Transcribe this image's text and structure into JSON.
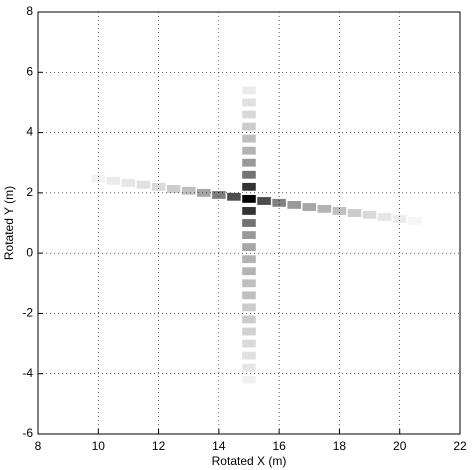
{
  "chart_data": {
    "type": "heatmap",
    "x_label": "Rotated X (m)",
    "y_label": "Rotated Y (m)",
    "xlim": [
      8,
      22
    ],
    "xticks": [
      8,
      10,
      12,
      14,
      16,
      18,
      20,
      22
    ],
    "ylim": [
      -6,
      8
    ],
    "yticks": [
      -6,
      -4,
      -2,
      0,
      2,
      4,
      6,
      8
    ],
    "grid": true,
    "colormap": "gray",
    "x": [
      15,
      15,
      15,
      15,
      15,
      15,
      15,
      15,
      15,
      15,
      15,
      15,
      15,
      15,
      15,
      15,
      15,
      15,
      15,
      15,
      15,
      15,
      15,
      15,
      15,
      10,
      10.5,
      11,
      11.5,
      12,
      12.5,
      13,
      13.5,
      14,
      14.5,
      15.5,
      16,
      16.5,
      17,
      17.5,
      18,
      18.5,
      19,
      19.5,
      20,
      20.5
    ],
    "y": [
      5.4,
      5.0,
      4.6,
      4.2,
      3.8,
      3.4,
      3.0,
      2.6,
      2.2,
      1.8,
      1.4,
      1.0,
      0.6,
      0.2,
      -0.2,
      -0.6,
      -1.0,
      -1.4,
      -1.8,
      -2.2,
      -2.6,
      -3.0,
      -3.4,
      -3.8,
      -4.2,
      2.47,
      2.4,
      2.33,
      2.27,
      2.2,
      2.13,
      2.07,
      2.0,
      1.93,
      1.87,
      1.73,
      1.67,
      1.6,
      1.53,
      1.47,
      1.4,
      1.33,
      1.27,
      1.2,
      1.13,
      1.07
    ],
    "values": [
      0.08,
      0.12,
      0.15,
      0.2,
      0.25,
      0.3,
      0.4,
      0.55,
      0.8,
      1.0,
      0.8,
      0.55,
      0.4,
      0.35,
      0.3,
      0.3,
      0.25,
      0.25,
      0.2,
      0.2,
      0.18,
      0.15,
      0.12,
      0.1,
      0.06,
      0.05,
      0.08,
      0.1,
      0.12,
      0.15,
      0.2,
      0.25,
      0.35,
      0.5,
      0.7,
      0.7,
      0.5,
      0.4,
      0.35,
      0.3,
      0.25,
      0.2,
      0.15,
      0.1,
      0.08,
      0.04
    ]
  }
}
